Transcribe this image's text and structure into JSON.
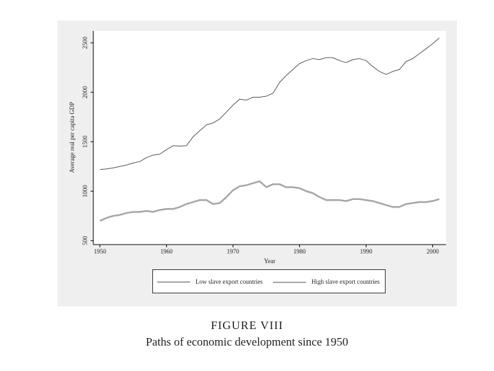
{
  "chart_data": {
    "type": "line",
    "title": "FIGURE VIII",
    "subtitle": "Paths of economic development since 1950",
    "xlabel": "Year",
    "ylabel": "Average real per capita GDP",
    "x": [
      1950,
      1951,
      1952,
      1953,
      1954,
      1955,
      1956,
      1957,
      1958,
      1959,
      1960,
      1961,
      1962,
      1963,
      1964,
      1965,
      1966,
      1967,
      1968,
      1969,
      1970,
      1971,
      1972,
      1973,
      1974,
      1975,
      1976,
      1977,
      1978,
      1979,
      1980,
      1981,
      1982,
      1983,
      1984,
      1985,
      1986,
      1987,
      1988,
      1989,
      1990,
      1991,
      1992,
      1993,
      1994,
      1995,
      1996,
      1997,
      1998,
      1999,
      2000,
      2001
    ],
    "series": [
      {
        "name": "Low slave export countries",
        "color": "#555555",
        "width": 1,
        "values": [
          1220,
          1225,
          1235,
          1250,
          1265,
          1285,
          1300,
          1340,
          1365,
          1375,
          1420,
          1460,
          1455,
          1460,
          1550,
          1610,
          1670,
          1690,
          1730,
          1800,
          1870,
          1930,
          1920,
          1950,
          1950,
          1960,
          1990,
          2100,
          2170,
          2230,
          2290,
          2320,
          2340,
          2330,
          2350,
          2350,
          2320,
          2300,
          2330,
          2340,
          2320,
          2260,
          2210,
          2180,
          2210,
          2230,
          2310,
          2340,
          2390,
          2440,
          2490,
          2550
        ]
      },
      {
        "name": "High slave export countries",
        "color": "#a6a6a6",
        "width": 2.5,
        "values": [
          700,
          730,
          750,
          760,
          780,
          790,
          790,
          800,
          790,
          810,
          820,
          820,
          840,
          870,
          890,
          910,
          910,
          870,
          880,
          940,
          1010,
          1050,
          1060,
          1080,
          1100,
          1040,
          1070,
          1070,
          1040,
          1040,
          1030,
          1000,
          980,
          940,
          910,
          910,
          910,
          900,
          920,
          920,
          910,
          900,
          880,
          860,
          840,
          840,
          870,
          880,
          890,
          890,
          900,
          920
        ]
      }
    ],
    "xlim": [
      1949,
      2002
    ],
    "xticks": [
      1950,
      1960,
      1970,
      1980,
      1990,
      2000
    ],
    "ylim": [
      460,
      2620
    ],
    "yticks": [
      500,
      1000,
      1500,
      2000,
      2500
    ]
  }
}
